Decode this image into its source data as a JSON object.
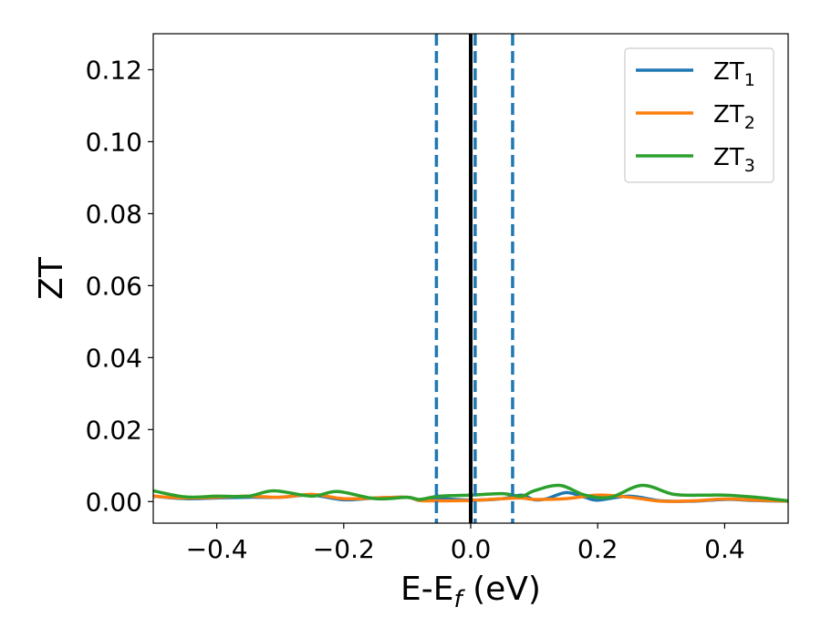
{
  "chart_data": {
    "type": "line",
    "title": "",
    "xlabel": "E-E",
    "xlabel_sub": "f",
    "xlabel_unit": " (eV)",
    "ylabel": "ZT",
    "xlim": [
      -0.5,
      0.5
    ],
    "ylim": [
      -0.006,
      0.13
    ],
    "x_ticks": [
      -0.4,
      -0.2,
      0.0,
      0.2,
      0.4
    ],
    "x_tick_labels": [
      "−0.4",
      "−0.2",
      "0.0",
      "0.2",
      "0.4"
    ],
    "y_ticks": [
      0.0,
      0.02,
      0.04,
      0.06,
      0.08,
      0.1,
      0.12
    ],
    "y_tick_labels": [
      "0.00",
      "0.02",
      "0.04",
      "0.06",
      "0.08",
      "0.10",
      "0.12"
    ],
    "grid": false,
    "legend_position": "top-right",
    "vertical_lines": [
      {
        "x": 0.0,
        "style": "solid",
        "color": "#000000"
      },
      {
        "x": -0.054,
        "style": "dashed",
        "color": "#1f77b4"
      },
      {
        "x": 0.007,
        "style": "dashed",
        "color": "#1f77b4"
      },
      {
        "x": 0.066,
        "style": "dashed",
        "color": "#1f77b4"
      }
    ],
    "series": [
      {
        "name": "ZT",
        "name_sub": "1",
        "color": "#1f77b4",
        "x": [
          -0.5,
          -0.45,
          -0.4,
          -0.35,
          -0.3,
          -0.25,
          -0.2,
          -0.15,
          -0.1,
          -0.08,
          -0.05,
          0.0,
          0.05,
          0.08,
          0.1,
          0.12,
          0.15,
          0.18,
          0.2,
          0.25,
          0.3,
          0.35,
          0.4,
          0.45,
          0.5
        ],
        "y": [
          0.0015,
          0.0008,
          0.001,
          0.0012,
          0.0012,
          0.0018,
          0.0005,
          0.001,
          0.0012,
          0.0003,
          0.0008,
          0.0004,
          0.0008,
          0.0018,
          0.0005,
          0.0008,
          0.0025,
          0.0012,
          0.0004,
          0.0015,
          0.0002,
          0.0001,
          0.0006,
          0.0003,
          0.0001
        ]
      },
      {
        "name": "ZT",
        "name_sub": "2",
        "color": "#ff7f0e",
        "x": [
          -0.5,
          -0.45,
          -0.4,
          -0.35,
          -0.3,
          -0.25,
          -0.2,
          -0.15,
          -0.1,
          -0.08,
          -0.05,
          0.0,
          0.05,
          0.08,
          0.1,
          0.15,
          0.2,
          0.25,
          0.3,
          0.35,
          0.4,
          0.45,
          0.5
        ],
        "y": [
          0.0015,
          0.001,
          0.0012,
          0.0015,
          0.0012,
          0.002,
          0.0008,
          0.001,
          0.0012,
          0.0003,
          0.0002,
          0.0003,
          0.0008,
          0.001,
          0.0006,
          0.0008,
          0.0018,
          0.0012,
          0.0001,
          0.0002,
          0.0007,
          0.0004,
          0.0001
        ]
      },
      {
        "name": "ZT",
        "name_sub": "3",
        "color": "#2ca02c",
        "x": [
          -0.5,
          -0.45,
          -0.4,
          -0.35,
          -0.31,
          -0.25,
          -0.21,
          -0.15,
          -0.1,
          -0.08,
          -0.05,
          0.0,
          0.05,
          0.08,
          0.1,
          0.14,
          0.18,
          0.22,
          0.27,
          0.32,
          0.37,
          0.4,
          0.45,
          0.5
        ],
        "y": [
          0.003,
          0.0013,
          0.0015,
          0.0015,
          0.003,
          0.0015,
          0.0028,
          0.0008,
          0.0012,
          0.0006,
          0.0015,
          0.0018,
          0.0022,
          0.0015,
          0.003,
          0.0045,
          0.0018,
          0.0012,
          0.0045,
          0.002,
          0.0018,
          0.0018,
          0.0012,
          0.0002
        ]
      }
    ]
  }
}
